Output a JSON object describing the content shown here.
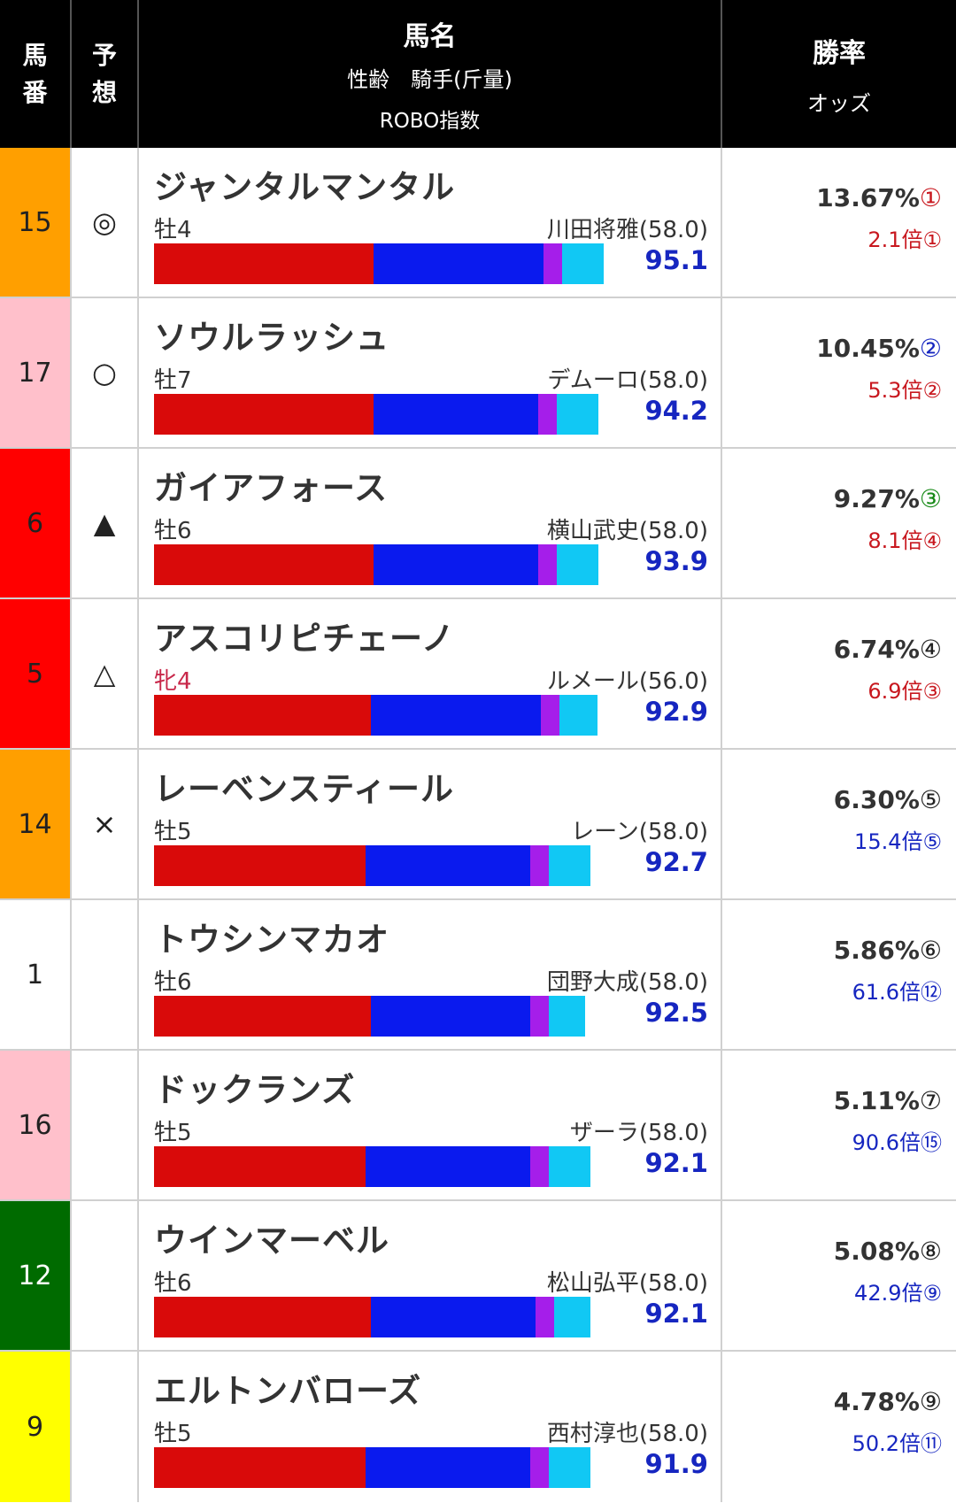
{
  "header": {
    "num_label": "馬\n番",
    "num_l1": "馬",
    "num_l2": "番",
    "mark_l1": "予",
    "mark_l2": "想",
    "name_l1": "馬名",
    "name_l2": "性齢　騎手(斤量)",
    "name_l3": "ROBO指数",
    "rate_l1": "勝率",
    "rate_l2": "オッズ"
  },
  "colors": {
    "red_bar": "#d90a0a",
    "blue_bar": "#0a1aee",
    "purple_bar": "#a51eea",
    "cyan_bar": "#11c8f4",
    "index_blue": "#1626c0"
  },
  "rows": [
    {
      "num": "15",
      "num_bg": "#ff9f00",
      "num_color": "#222",
      "mark": "◎",
      "name": "ジャンタルマンタル",
      "sex": "牡4",
      "jockey": "川田将雅(58.0)",
      "bar": [
        0.4,
        0.31,
        0.034,
        0.076
      ],
      "index": "95.1",
      "rate": "13.67%",
      "rate_rank": "①",
      "rank_class": "rk1",
      "odds": "2.1倍",
      "odds_rank": "①",
      "odds_class": "red"
    },
    {
      "num": "17",
      "num_bg": "#ffc0cb",
      "num_color": "#222",
      "mark": "○",
      "name": "ソウルラッシュ",
      "sex": "牡7",
      "jockey": "デムーロ(58.0)",
      "bar": [
        0.4,
        0.3,
        0.034,
        0.075
      ],
      "index": "94.2",
      "rate": "10.45%",
      "rate_rank": "②",
      "rank_class": "rk2",
      "odds": "5.3倍",
      "odds_rank": "②",
      "odds_class": "red"
    },
    {
      "num": "6",
      "num_bg": "#ff0000",
      "num_color": "#222",
      "mark": "▲",
      "name": "ガイアフォース",
      "sex": "牡6",
      "jockey": "横山武史(58.0)",
      "bar": [
        0.4,
        0.3,
        0.034,
        0.075
      ],
      "index": "93.9",
      "rate": "9.27%",
      "rate_rank": "③",
      "rank_class": "rk3",
      "odds": "8.1倍",
      "odds_rank": "④",
      "odds_class": "red"
    },
    {
      "num": "5",
      "num_bg": "#ff0000",
      "num_color": "#222",
      "mark": "△",
      "name": "アスコリピチェーノ",
      "sex": "牝4",
      "sex_f": true,
      "jockey": "ルメール(56.0)",
      "bar": [
        0.395,
        0.31,
        0.034,
        0.07
      ],
      "index": "92.9",
      "rate": "6.74%",
      "rate_rank": "④",
      "rank_class": "rkn",
      "odds": "6.9倍",
      "odds_rank": "③",
      "odds_class": "red"
    },
    {
      "num": "14",
      "num_bg": "#ff9f00",
      "num_color": "#222",
      "mark": "×",
      "name": "レーベンスティール",
      "sex": "牡5",
      "jockey": "レーン(58.0)",
      "bar": [
        0.385,
        0.3,
        0.034,
        0.076
      ],
      "index": "92.7",
      "rate": "6.30%",
      "rate_rank": "⑤",
      "rank_class": "rkn",
      "odds": "15.4倍",
      "odds_rank": "⑤",
      "odds_class": "blue"
    },
    {
      "num": "1",
      "num_bg": "#ffffff",
      "num_color": "#222",
      "mark": "",
      "name": "トウシンマカオ",
      "sex": "牡6",
      "jockey": "団野大成(58.0)",
      "bar": [
        0.395,
        0.29,
        0.034,
        0.066
      ],
      "index": "92.5",
      "rate": "5.86%",
      "rate_rank": "⑥",
      "rank_class": "rkn",
      "odds": "61.6倍",
      "odds_rank": "⑫",
      "odds_class": "blue"
    },
    {
      "num": "16",
      "num_bg": "#ffc0cb",
      "num_color": "#222",
      "mark": "",
      "name": "ドックランズ",
      "sex": "牡5",
      "jockey": "ザーラ(58.0)",
      "bar": [
        0.385,
        0.3,
        0.034,
        0.076
      ],
      "index": "92.1",
      "rate": "5.11%",
      "rate_rank": "⑦",
      "rank_class": "rkn",
      "odds": "90.6倍",
      "odds_rank": "⑮",
      "odds_class": "blue"
    },
    {
      "num": "12",
      "num_bg": "#006b00",
      "num_color": "#fff",
      "mark": "",
      "name": "ウインマーベル",
      "sex": "牡6",
      "jockey": "松山弘平(58.0)",
      "bar": [
        0.395,
        0.3,
        0.034,
        0.066
      ],
      "index": "92.1",
      "rate": "5.08%",
      "rate_rank": "⑧",
      "rank_class": "rkn",
      "odds": "42.9倍",
      "odds_rank": "⑨",
      "odds_class": "blue"
    },
    {
      "num": "9",
      "num_bg": "#ffff00",
      "num_color": "#222",
      "mark": "",
      "name": "エルトンバローズ",
      "sex": "牡5",
      "jockey": "西村淳也(58.0)",
      "bar": [
        0.385,
        0.3,
        0.034,
        0.076
      ],
      "index": "91.9",
      "rate": "4.78%",
      "rate_rank": "⑨",
      "rank_class": "rkn",
      "odds": "50.2倍",
      "odds_rank": "⑪",
      "odds_class": "blue"
    }
  ]
}
